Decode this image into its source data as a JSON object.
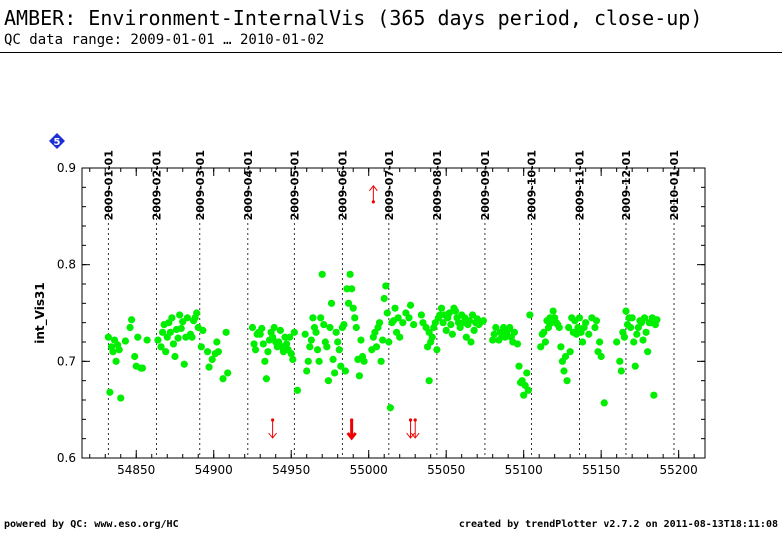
{
  "header": {
    "title": "AMBER: Environment-InternalVis (365 days period, close-up)",
    "subtitle": "QC data range: 2009-01-01 … 2010-01-02"
  },
  "footer": {
    "left": "powered by QC: www.eso.org/HC",
    "right": "created by trendPlotter v2.7.2 on 2011-08-13T18:11:08"
  },
  "badge": {
    "text": "5",
    "icon": "diamond-icon",
    "color": "#1c2fd6"
  },
  "chart_data": {
    "type": "scatter",
    "ylabel": "int_Vis31",
    "xlabel": "",
    "xlim": [
      54815,
      55217
    ],
    "ylim": [
      0.6,
      0.9
    ],
    "x_ticks": [
      54850,
      54900,
      54950,
      55000,
      55050,
      55100,
      55150,
      55200
    ],
    "x_tick_labels": [
      "54850",
      "54900",
      "54950",
      "55000",
      "55050",
      "55100",
      "55150",
      "55200"
    ],
    "y_ticks": [
      0.6,
      0.7,
      0.8,
      0.9
    ],
    "y_tick_labels": [
      "0.6",
      "0.7",
      "0.8",
      "0.9"
    ],
    "date_lines": [
      {
        "mjd": 54832,
        "label": "2009-01-01"
      },
      {
        "mjd": 54863,
        "label": "2009-02-01"
      },
      {
        "mjd": 54891,
        "label": "2009-03-01"
      },
      {
        "mjd": 54922,
        "label": "2009-04-01"
      },
      {
        "mjd": 54952,
        "label": "2009-05-01"
      },
      {
        "mjd": 54983,
        "label": "2009-06-01"
      },
      {
        "mjd": 55013,
        "label": "2009-07-01"
      },
      {
        "mjd": 55044,
        "label": "2009-08-01"
      },
      {
        "mjd": 55075,
        "label": "2009-09-01"
      },
      {
        "mjd": 55105,
        "label": "2009-10-01"
      },
      {
        "mjd": 55136,
        "label": "2009-11-01"
      },
      {
        "mjd": 55166,
        "label": "2009-12-01"
      },
      {
        "mjd": 55197,
        "label": "2010-01-01"
      }
    ],
    "grid_x": "dotted vertical lines at month starts",
    "series": [
      {
        "color": "#00ee00",
        "points": [
          [
            54832,
            0.725
          ],
          [
            54833,
            0.668
          ],
          [
            54834,
            0.715
          ],
          [
            54835,
            0.71
          ],
          [
            54836,
            0.722
          ],
          [
            54837,
            0.7
          ],
          [
            54838,
            0.717
          ],
          [
            54839,
            0.712
          ],
          [
            54840,
            0.662
          ],
          [
            54843,
            0.721
          ],
          [
            54846,
            0.735
          ],
          [
            54847,
            0.743
          ],
          [
            54849,
            0.705
          ],
          [
            54850,
            0.695
          ],
          [
            54851,
            0.725
          ],
          [
            54853,
            0.693
          ],
          [
            54854,
            0.693
          ],
          [
            54857,
            0.722
          ],
          [
            54864,
            0.722
          ],
          [
            54866,
            0.715
          ],
          [
            54867,
            0.73
          ],
          [
            54868,
            0.738
          ],
          [
            54869,
            0.71
          ],
          [
            54870,
            0.725
          ],
          [
            54871,
            0.74
          ],
          [
            54872,
            0.73
          ],
          [
            54873,
            0.745
          ],
          [
            54874,
            0.718
          ],
          [
            54875,
            0.705
          ],
          [
            54876,
            0.733
          ],
          [
            54877,
            0.724
          ],
          [
            54878,
            0.748
          ],
          [
            54879,
            0.734
          ],
          [
            54880,
            0.741
          ],
          [
            54881,
            0.697
          ],
          [
            54882,
            0.725
          ],
          [
            54883,
            0.745
          ],
          [
            54885,
            0.728
          ],
          [
            54886,
            0.725
          ],
          [
            54887,
            0.742
          ],
          [
            54888,
            0.745
          ],
          [
            54889,
            0.75
          ],
          [
            54890,
            0.735
          ],
          [
            54892,
            0.715
          ],
          [
            54893,
            0.732
          ],
          [
            54896,
            0.71
          ],
          [
            54897,
            0.694
          ],
          [
            54899,
            0.702
          ],
          [
            54901,
            0.708
          ],
          [
            54902,
            0.72
          ],
          [
            54903,
            0.71
          ],
          [
            54906,
            0.682
          ],
          [
            54908,
            0.73
          ],
          [
            54909,
            0.688
          ],
          [
            54925,
            0.735
          ],
          [
            54926,
            0.718
          ],
          [
            54927,
            0.712
          ],
          [
            54928,
            0.728
          ],
          [
            54929,
            0.73
          ],
          [
            54930,
            0.728
          ],
          [
            54931,
            0.734
          ],
          [
            54932,
            0.718
          ],
          [
            54933,
            0.7
          ],
          [
            54934,
            0.682
          ],
          [
            54935,
            0.71
          ],
          [
            54936,
            0.722
          ],
          [
            54937,
            0.73
          ],
          [
            54938,
            0.725
          ],
          [
            54939,
            0.735
          ],
          [
            54940,
            0.72
          ],
          [
            54941,
            0.715
          ],
          [
            54942,
            0.72
          ],
          [
            54943,
            0.732
          ],
          [
            54944,
            0.715
          ],
          [
            54945,
            0.71
          ],
          [
            54946,
            0.725
          ],
          [
            54947,
            0.718
          ],
          [
            54948,
            0.712
          ],
          [
            54949,
            0.725
          ],
          [
            54950,
            0.708
          ],
          [
            54951,
            0.702
          ],
          [
            54952,
            0.73
          ],
          [
            54954,
            0.67
          ],
          [
            54959,
            0.728
          ],
          [
            54960,
            0.69
          ],
          [
            54961,
            0.7
          ],
          [
            54962,
            0.715
          ],
          [
            54963,
            0.722
          ],
          [
            54964,
            0.745
          ],
          [
            54965,
            0.735
          ],
          [
            54966,
            0.73
          ],
          [
            54967,
            0.712
          ],
          [
            54968,
            0.7
          ],
          [
            54969,
            0.745
          ],
          [
            54970,
            0.79
          ],
          [
            54971,
            0.738
          ],
          [
            54972,
            0.72
          ],
          [
            54973,
            0.715
          ],
          [
            54974,
            0.68
          ],
          [
            54975,
            0.735
          ],
          [
            54976,
            0.76
          ],
          [
            54977,
            0.702
          ],
          [
            54978,
            0.688
          ],
          [
            54979,
            0.73
          ],
          [
            54980,
            0.72
          ],
          [
            54981,
            0.712
          ],
          [
            54982,
            0.695
          ],
          [
            54983,
            0.735
          ],
          [
            54984,
            0.738
          ],
          [
            54985,
            0.69
          ],
          [
            54986,
            0.775
          ],
          [
            54987,
            0.76
          ],
          [
            54988,
            0.79
          ],
          [
            54989,
            0.775
          ],
          [
            54990,
            0.755
          ],
          [
            54991,
            0.745
          ],
          [
            54992,
            0.735
          ],
          [
            54993,
            0.702
          ],
          [
            54994,
            0.685
          ],
          [
            54995,
            0.722
          ],
          [
            54996,
            0.705
          ],
          [
            54997,
            0.7
          ],
          [
            55002,
            0.712
          ],
          [
            55003,
            0.725
          ],
          [
            55004,
            0.73
          ],
          [
            55005,
            0.715
          ],
          [
            55006,
            0.735
          ],
          [
            55007,
            0.74
          ],
          [
            55008,
            0.7
          ],
          [
            55009,
            0.722
          ],
          [
            55010,
            0.765
          ],
          [
            55011,
            0.778
          ],
          [
            55012,
            0.75
          ],
          [
            55013,
            0.72
          ],
          [
            55014,
            0.652
          ],
          [
            55015,
            0.74
          ],
          [
            55016,
            0.742
          ],
          [
            55017,
            0.755
          ],
          [
            55018,
            0.73
          ],
          [
            55019,
            0.745
          ],
          [
            55020,
            0.725
          ],
          [
            55022,
            0.74
          ],
          [
            55024,
            0.75
          ],
          [
            55026,
            0.745
          ],
          [
            55027,
            0.758
          ],
          [
            55029,
            0.738
          ],
          [
            55034,
            0.748
          ],
          [
            55035,
            0.74
          ],
          [
            55037,
            0.735
          ],
          [
            55038,
            0.715
          ],
          [
            55039,
            0.73
          ],
          [
            55040,
            0.72
          ],
          [
            55041,
            0.725
          ],
          [
            55042,
            0.735
          ],
          [
            55043,
            0.74
          ],
          [
            55044,
            0.712
          ],
          [
            55045,
            0.745
          ],
          [
            55046,
            0.748
          ],
          [
            55047,
            0.755
          ],
          [
            55048,
            0.74
          ],
          [
            55049,
            0.748
          ],
          [
            55050,
            0.732
          ],
          [
            55051,
            0.745
          ],
          [
            55052,
            0.75
          ],
          [
            55053,
            0.738
          ],
          [
            55054,
            0.728
          ],
          [
            55055,
            0.755
          ],
          [
            55056,
            0.752
          ],
          [
            55057,
            0.745
          ],
          [
            55058,
            0.74
          ],
          [
            55059,
            0.735
          ],
          [
            55060,
            0.748
          ],
          [
            55061,
            0.74
          ],
          [
            55062,
            0.745
          ],
          [
            55063,
            0.725
          ],
          [
            55064,
            0.738
          ],
          [
            55065,
            0.742
          ],
          [
            55066,
            0.72
          ],
          [
            55067,
            0.748
          ],
          [
            55068,
            0.732
          ],
          [
            55069,
            0.74
          ],
          [
            55070,
            0.744
          ],
          [
            55071,
            0.738
          ],
          [
            55072,
            0.74
          ],
          [
            55074,
            0.742
          ],
          [
            55039,
            0.68
          ],
          [
            55080,
            0.722
          ],
          [
            55081,
            0.728
          ],
          [
            55082,
            0.735
          ],
          [
            55084,
            0.722
          ],
          [
            55085,
            0.73
          ],
          [
            55086,
            0.726
          ],
          [
            55087,
            0.735
          ],
          [
            55088,
            0.725
          ],
          [
            55089,
            0.73
          ],
          [
            55090,
            0.733
          ],
          [
            55091,
            0.735
          ],
          [
            55092,
            0.725
          ],
          [
            55093,
            0.72
          ],
          [
            55094,
            0.73
          ],
          [
            55096,
            0.718
          ],
          [
            55097,
            0.695
          ],
          [
            55098,
            0.678
          ],
          [
            55099,
            0.68
          ],
          [
            55100,
            0.665
          ],
          [
            55101,
            0.675
          ],
          [
            55102,
            0.688
          ],
          [
            55103,
            0.67
          ],
          [
            55104,
            0.748
          ],
          [
            55111,
            0.715
          ],
          [
            55112,
            0.728
          ],
          [
            55113,
            0.73
          ],
          [
            55114,
            0.72
          ],
          [
            55115,
            0.742
          ],
          [
            55116,
            0.735
          ],
          [
            55117,
            0.745
          ],
          [
            55118,
            0.74
          ],
          [
            55119,
            0.752
          ],
          [
            55120,
            0.745
          ],
          [
            55121,
            0.74
          ],
          [
            55122,
            0.738
          ],
          [
            55123,
            0.735
          ],
          [
            55124,
            0.715
          ],
          [
            55125,
            0.7
          ],
          [
            55126,
            0.69
          ],
          [
            55127,
            0.705
          ],
          [
            55128,
            0.68
          ],
          [
            55129,
            0.735
          ],
          [
            55130,
            0.71
          ],
          [
            55131,
            0.745
          ],
          [
            55132,
            0.73
          ],
          [
            55133,
            0.742
          ],
          [
            55134,
            0.728
          ],
          [
            55135,
            0.735
          ],
          [
            55136,
            0.745
          ],
          [
            55137,
            0.73
          ],
          [
            55138,
            0.72
          ],
          [
            55139,
            0.735
          ],
          [
            55140,
            0.74
          ],
          [
            55142,
            0.728
          ],
          [
            55144,
            0.745
          ],
          [
            55146,
            0.735
          ],
          [
            55147,
            0.742
          ],
          [
            55148,
            0.71
          ],
          [
            55149,
            0.72
          ],
          [
            55150,
            0.705
          ],
          [
            55152,
            0.657
          ],
          [
            55160,
            0.72
          ],
          [
            55162,
            0.7
          ],
          [
            55163,
            0.69
          ],
          [
            55164,
            0.73
          ],
          [
            55165,
            0.725
          ],
          [
            55166,
            0.752
          ],
          [
            55167,
            0.738
          ],
          [
            55168,
            0.745
          ],
          [
            55169,
            0.735
          ],
          [
            55170,
            0.745
          ],
          [
            55171,
            0.72
          ],
          [
            55172,
            0.695
          ],
          [
            55173,
            0.728
          ],
          [
            55174,
            0.735
          ],
          [
            55175,
            0.742
          ],
          [
            55176,
            0.74
          ],
          [
            55177,
            0.722
          ],
          [
            55178,
            0.745
          ],
          [
            55179,
            0.73
          ],
          [
            55180,
            0.71
          ],
          [
            55181,
            0.74
          ],
          [
            55182,
            0.74
          ],
          [
            55183,
            0.745
          ],
          [
            55184,
            0.665
          ],
          [
            55185,
            0.738
          ],
          [
            55186,
            0.743
          ]
        ]
      }
    ],
    "outlier_arrows": {
      "color": "#ee0000",
      "items": [
        {
          "x": 55003,
          "direction": "up",
          "value": 0.865
        },
        {
          "x": 54938,
          "direction": "down"
        },
        {
          "x": 54989,
          "direction": "down",
          "weight": "bold"
        },
        {
          "x": 55027,
          "direction": "down"
        },
        {
          "x": 55030,
          "direction": "down"
        }
      ]
    }
  }
}
